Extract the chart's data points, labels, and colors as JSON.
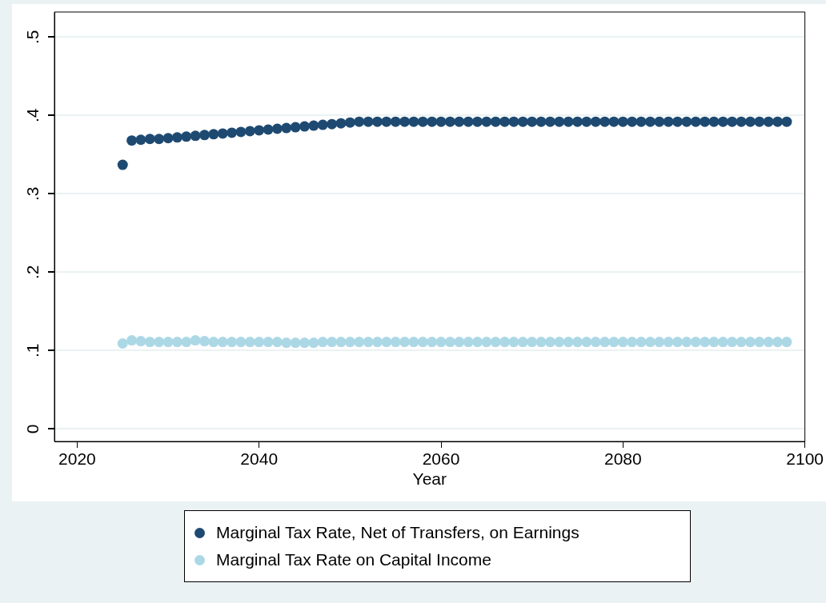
{
  "chart_data": {
    "type": "scatter",
    "xlabel": "Year",
    "x": [
      2025,
      2026,
      2027,
      2028,
      2029,
      2030,
      2031,
      2032,
      2033,
      2034,
      2035,
      2036,
      2037,
      2038,
      2039,
      2040,
      2041,
      2042,
      2043,
      2044,
      2045,
      2046,
      2047,
      2048,
      2049,
      2050,
      2051,
      2052,
      2053,
      2054,
      2055,
      2056,
      2057,
      2058,
      2059,
      2060,
      2061,
      2062,
      2063,
      2064,
      2065,
      2066,
      2067,
      2068,
      2069,
      2070,
      2071,
      2072,
      2073,
      2074,
      2075,
      2076,
      2077,
      2078,
      2079,
      2080,
      2081,
      2082,
      2083,
      2084,
      2085,
      2086,
      2087,
      2088,
      2089,
      2090,
      2091,
      2092,
      2093,
      2094,
      2095,
      2096,
      2097,
      2098
    ],
    "series": [
      {
        "name": "Marginal Tax Rate, Net of Transfers, on Earnings",
        "color": "#1e4a72",
        "values": [
          0.337,
          0.368,
          0.369,
          0.37,
          0.37,
          0.371,
          0.372,
          0.373,
          0.374,
          0.375,
          0.376,
          0.377,
          0.378,
          0.379,
          0.38,
          0.381,
          0.382,
          0.383,
          0.384,
          0.385,
          0.386,
          0.387,
          0.388,
          0.389,
          0.39,
          0.391,
          0.392,
          0.392,
          0.392,
          0.392,
          0.392,
          0.392,
          0.392,
          0.392,
          0.392,
          0.392,
          0.392,
          0.392,
          0.392,
          0.392,
          0.392,
          0.392,
          0.392,
          0.392,
          0.392,
          0.392,
          0.392,
          0.392,
          0.392,
          0.392,
          0.392,
          0.392,
          0.392,
          0.392,
          0.392,
          0.392,
          0.392,
          0.392,
          0.392,
          0.392,
          0.392,
          0.392,
          0.392,
          0.392,
          0.392,
          0.392,
          0.392,
          0.392,
          0.392,
          0.392,
          0.392,
          0.392,
          0.392,
          0.392
        ]
      },
      {
        "name": "Marginal Tax Rate on Capital Income",
        "color": "#acd8e6",
        "values": [
          0.109,
          0.113,
          0.112,
          0.111,
          0.111,
          0.111,
          0.111,
          0.111,
          0.113,
          0.112,
          0.111,
          0.111,
          0.111,
          0.111,
          0.111,
          0.111,
          0.111,
          0.111,
          0.11,
          0.11,
          0.11,
          0.11,
          0.111,
          0.111,
          0.111,
          0.111,
          0.111,
          0.111,
          0.111,
          0.111,
          0.111,
          0.111,
          0.111,
          0.111,
          0.111,
          0.111,
          0.111,
          0.111,
          0.111,
          0.111,
          0.111,
          0.111,
          0.111,
          0.111,
          0.111,
          0.111,
          0.111,
          0.111,
          0.111,
          0.111,
          0.111,
          0.111,
          0.111,
          0.111,
          0.111,
          0.111,
          0.111,
          0.111,
          0.111,
          0.111,
          0.111,
          0.111,
          0.111,
          0.111,
          0.111,
          0.111,
          0.111,
          0.111,
          0.111,
          0.111,
          0.111,
          0.111,
          0.111,
          0.111
        ]
      }
    ],
    "xlim": [
      2017.5,
      2100
    ],
    "xticks": [
      2020,
      2040,
      2060,
      2080,
      2100
    ],
    "ylim": [
      -0.016,
      0.532
    ],
    "yticks": [
      0,
      {
        "value": 0.1,
        "label": ".1"
      },
      {
        "value": 0.2,
        "label": ".2"
      },
      {
        "value": 0.3,
        "label": ".3"
      },
      {
        "value": 0.4,
        "label": ".4"
      },
      {
        "value": 0.5,
        "label": ".5"
      }
    ],
    "grid": "y",
    "legend": "bottom",
    "marker": "circle"
  }
}
